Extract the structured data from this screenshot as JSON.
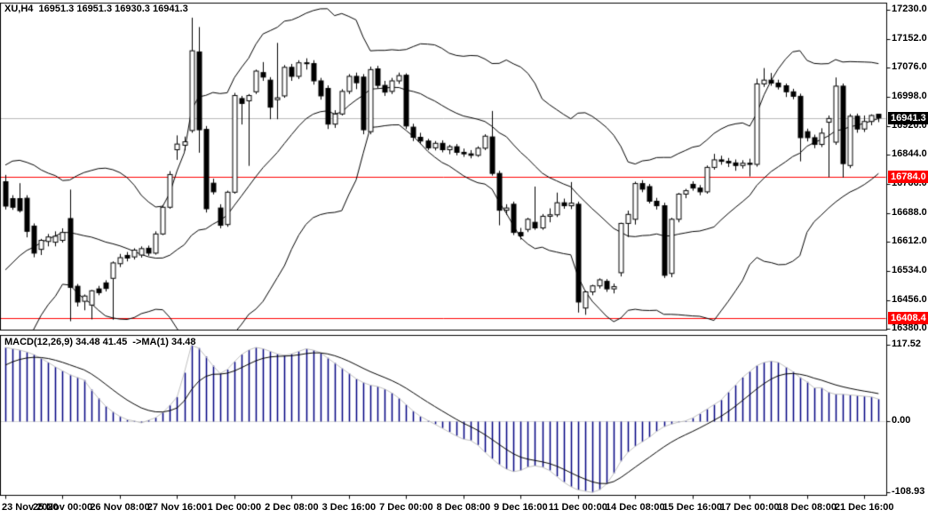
{
  "window_title": "XU,H4  16951.3 16951.3 16930.3 16941.3",
  "macd_label": "MACD(12,26,9) 34.48 41.45  ->MA(1) 34.48",
  "colors": {
    "background": "#ffffff",
    "border": "#000000",
    "bull_fill": "#ffffff",
    "bear_fill": "#000000",
    "candle_outline": "#000000",
    "band_line": "#000000",
    "hline": "#ff0000",
    "current_price_line": "#b8b8b8",
    "macd_hist": "#000080",
    "macd_ma_line": "#c0c0c0",
    "macd_signal_line": "#000000",
    "macd_zero_line": "#d9d9d9",
    "tag_current_bg": "#000000",
    "tag_hline_bg": "#ff0000",
    "tag_text": "#ffffff"
  },
  "chart_data": {
    "type": "candlestick",
    "symbol": "XU",
    "timeframe": "H4",
    "title": "XU,H4  16951.3 16951.3 16930.3 16941.3",
    "price_axis": {
      "labels": [
        17230.0,
        17152.0,
        17076.0,
        16998.0,
        16920.0,
        16844.0,
        16766.0,
        16688.0,
        16612.0,
        16534.0,
        16456.0,
        16380.0
      ],
      "visible_range": {
        "high": 17255,
        "low": 16381
      }
    },
    "time_axis": {
      "labels": [
        "23 Nov 2020",
        "25 Nov 00:00",
        "26 Nov 08:00",
        "27 Nov 16:00",
        "1 Dec 00:00",
        "2 Dec 08:00",
        "3 Dec 16:00",
        "7 Dec 00:00",
        "8 Dec 08:00",
        "9 Dec 16:00",
        "11 Dec 00:00",
        "14 Dec 08:00",
        "15 Dec 16:00",
        "17 Dec 00:00",
        "18 Dec 08:00",
        "21 Dec 16:00"
      ],
      "candles_per_label": 8
    },
    "current_price": {
      "price": 16941.3,
      "label": "16941.3"
    },
    "hlines": [
      {
        "price": 16784.0,
        "label": "16784.0"
      },
      {
        "price": 16408.4,
        "label": "16408.4"
      }
    ],
    "bollinger": {
      "period": 20,
      "deviation": 2
    },
    "prehistory_closes": [
      16310,
      16330,
      16320,
      16355,
      16400,
      16380,
      16430,
      16468,
      16450,
      16500,
      16530,
      16558,
      16552,
      16600,
      16630,
      16648,
      16680,
      16710,
      16742,
      16760
    ],
    "candles": [
      [
        16772,
        16790,
        16698,
        16707
      ],
      [
        16727,
        16736,
        16697,
        16704
      ],
      [
        16727,
        16768,
        16690,
        16695
      ],
      [
        16728,
        16736,
        16624,
        16640
      ],
      [
        16654,
        16661,
        16571,
        16582
      ],
      [
        16592,
        16620,
        16577,
        16616
      ],
      [
        16613,
        16633,
        16600,
        16625
      ],
      [
        16611,
        16640,
        16600,
        16627
      ],
      [
        16616,
        16648,
        16610,
        16637
      ],
      [
        16674,
        16751,
        16401,
        16491
      ],
      [
        16494,
        16500,
        16440,
        16452
      ],
      [
        16454,
        16472,
        16430,
        16468
      ],
      [
        16444,
        16484,
        16406,
        16482
      ],
      [
        16487,
        16495,
        16470,
        16477
      ],
      [
        16503,
        16510,
        16480,
        16488
      ],
      [
        16515,
        16560,
        16405,
        16556
      ],
      [
        16554,
        16580,
        16545,
        16570
      ],
      [
        16576,
        16585,
        16560,
        16569
      ],
      [
        16572,
        16595,
        16565,
        16590
      ],
      [
        16577,
        16600,
        16570,
        16594
      ],
      [
        16595,
        16602,
        16575,
        16582
      ],
      [
        16582,
        16640,
        16578,
        16633
      ],
      [
        16633,
        16710,
        16630,
        16704
      ],
      [
        16704,
        16800,
        16700,
        16791
      ],
      [
        16857,
        16895,
        16830,
        16872
      ],
      [
        16869,
        16892,
        16855,
        16878
      ],
      [
        16908,
        17208,
        16902,
        17120
      ],
      [
        17117,
        17183,
        16849,
        16910
      ],
      [
        16911,
        16920,
        16690,
        16700
      ],
      [
        16768,
        16780,
        16738,
        16745
      ],
      [
        16702,
        16712,
        16648,
        16656
      ],
      [
        16658,
        16748,
        16652,
        16744
      ],
      [
        16744,
        17008,
        16740,
        17001
      ],
      [
        16993,
        17000,
        16924,
        16980
      ],
      [
        16987,
        17005,
        16814,
        17001
      ],
      [
        17011,
        17070,
        17005,
        17066
      ],
      [
        17062,
        17090,
        17040,
        17050
      ],
      [
        17042,
        17050,
        16938,
        16970
      ],
      [
        16990,
        17141,
        16938,
        16995
      ],
      [
        17000,
        17082,
        16995,
        17076
      ],
      [
        17076,
        17085,
        17040,
        17052
      ],
      [
        17052,
        17095,
        17045,
        17088
      ],
      [
        17088,
        17100,
        17070,
        17086
      ],
      [
        17086,
        17095,
        17030,
        17040
      ],
      [
        17040,
        17048,
        16990,
        17000
      ],
      [
        17020,
        17028,
        16912,
        16925
      ],
      [
        16925,
        16962,
        16915,
        16952
      ],
      [
        16952,
        17018,
        16948,
        17012
      ],
      [
        17012,
        17058,
        17005,
        17052
      ],
      [
        17052,
        17062,
        17018,
        17035
      ],
      [
        17050,
        17058,
        16898,
        16910
      ],
      [
        16905,
        17078,
        16898,
        17070
      ],
      [
        17072,
        17080,
        17020,
        17028
      ],
      [
        17028,
        17040,
        17000,
        17010
      ],
      [
        17012,
        17048,
        17005,
        17040
      ],
      [
        17040,
        17062,
        17032,
        17054
      ],
      [
        17055,
        17060,
        16912,
        16920
      ],
      [
        16917,
        16926,
        16880,
        16890
      ],
      [
        16890,
        16902,
        16872,
        16880
      ],
      [
        16880,
        16886,
        16856,
        16862
      ],
      [
        16862,
        16880,
        16855,
        16874
      ],
      [
        16874,
        16882,
        16850,
        16857
      ],
      [
        16857,
        16870,
        16845,
        16865
      ],
      [
        16865,
        16872,
        16842,
        16850
      ],
      [
        16850,
        16860,
        16838,
        16846
      ],
      [
        16846,
        16856,
        16834,
        16842
      ],
      [
        16842,
        16866,
        16838,
        16861
      ],
      [
        16861,
        16898,
        16856,
        16893
      ],
      [
        16891,
        16960,
        16788,
        16794
      ],
      [
        16794,
        16801,
        16656,
        16696
      ],
      [
        16696,
        16712,
        16684,
        16702
      ],
      [
        16712,
        16719,
        16630,
        16637
      ],
      [
        16637,
        16649,
        16618,
        16628
      ],
      [
        16645,
        16676,
        16638,
        16672
      ],
      [
        16664,
        16759,
        16644,
        16649
      ],
      [
        16649,
        16686,
        16644,
        16680
      ],
      [
        16680,
        16701,
        16664,
        16684
      ],
      [
        16684,
        16743,
        16678,
        16716
      ],
      [
        16716,
        16727,
        16700,
        16708
      ],
      [
        16708,
        16771,
        16699,
        16715
      ],
      [
        16712,
        16719,
        16424,
        16452
      ],
      [
        16436,
        16482,
        16418,
        16479
      ],
      [
        16479,
        16498,
        16470,
        16495
      ],
      [
        16495,
        16515,
        16488,
        16511
      ],
      [
        16507,
        16513,
        16479,
        16487
      ],
      [
        16487,
        16501,
        16475,
        16493
      ],
      [
        16530,
        16663,
        16520,
        16661
      ],
      [
        16661,
        16695,
        16625,
        16685
      ],
      [
        16672,
        16772,
        16658,
        16767
      ],
      [
        16767,
        16776,
        16744,
        16752
      ],
      [
        16759,
        16766,
        16714,
        16720
      ],
      [
        16720,
        16729,
        16698,
        16708
      ],
      [
        16708,
        16716,
        16516,
        16523
      ],
      [
        16528,
        16676,
        16518,
        16672
      ],
      [
        16672,
        16742,
        16664,
        16739
      ],
      [
        16739,
        16753,
        16728,
        16748
      ],
      [
        16765,
        16773,
        16748,
        16755
      ],
      [
        16755,
        16763,
        16736,
        16745
      ],
      [
        16745,
        16815,
        16740,
        16810
      ],
      [
        16810,
        16846,
        16804,
        16830
      ],
      [
        16830,
        16841,
        16817,
        16826
      ],
      [
        16826,
        16835,
        16811,
        16822
      ],
      [
        16822,
        16831,
        16801,
        16815
      ],
      [
        16815,
        16829,
        16807,
        16821
      ],
      [
        16821,
        16833,
        16786,
        16818
      ],
      [
        16818,
        17046,
        16812,
        17032
      ],
      [
        17032,
        17074,
        17024,
        17042
      ],
      [
        17042,
        17061,
        17027,
        17034
      ],
      [
        17034,
        17043,
        17017,
        17024
      ],
      [
        17027,
        17033,
        16997,
        17011
      ],
      [
        17011,
        17019,
        16991,
        16999
      ],
      [
        16999,
        17006,
        16826,
        16889
      ],
      [
        16905,
        16913,
        16879,
        16889
      ],
      [
        16889,
        16897,
        16861,
        16871
      ],
      [
        16871,
        16914,
        16864,
        16901
      ],
      [
        16930,
        16948,
        16784,
        16940
      ],
      [
        16877,
        17049,
        16870,
        17026
      ],
      [
        17026,
        17033,
        16783,
        16820
      ],
      [
        16815,
        16952,
        16808,
        16946
      ],
      [
        16946,
        16953,
        16902,
        16912
      ],
      [
        16912,
        16948,
        16904,
        16932
      ],
      [
        16932,
        16951,
        16922,
        16948
      ],
      [
        16951.3,
        16951.3,
        16930.3,
        16941.3
      ]
    ],
    "macd": {
      "params": "12,26,9",
      "label": "MACD(12,26,9) 34.48 41.45  ->MA(1) 34.48",
      "main_value": 34.48,
      "signal_value": 41.45,
      "ma1_value": 34.48,
      "axis_labels": [
        {
          "label": "117.52",
          "value": 117.52
        },
        {
          "label": "0.00",
          "value": 0
        },
        {
          "label": "-108.93",
          "value": -108.93
        }
      ],
      "visible_range": {
        "high": 132.5,
        "low": -113.4
      },
      "signal_start": 80,
      "hist": [
        114,
        112,
        110,
        107,
        103,
        97,
        91,
        84,
        78,
        72,
        68,
        64,
        49,
        36,
        24,
        15,
        8,
        3,
        1,
        -2,
        2,
        6,
        14,
        25,
        38,
        75,
        117.5,
        113,
        100,
        86,
        74,
        80,
        92,
        103,
        110,
        114,
        112,
        108,
        104,
        102,
        104,
        108,
        112,
        110,
        106,
        98,
        90,
        82,
        74,
        66,
        60,
        56,
        54,
        50,
        44,
        36,
        26,
        16,
        8,
        2,
        -4,
        -10,
        -16,
        -22,
        -27,
        -29,
        -36,
        -47,
        -57,
        -66,
        -73,
        -77,
        -75,
        -70,
        -68,
        -70,
        -75,
        -84,
        -93,
        -100,
        -105,
        -107,
        -108.9,
        -105,
        -96,
        -80,
        -61,
        -47,
        -38,
        -31,
        -24,
        -15,
        -8,
        -4,
        -1,
        1,
        5.5,
        12,
        19,
        26,
        33,
        45,
        56,
        68,
        77,
        86,
        91,
        93,
        91,
        84,
        77,
        68,
        61,
        52,
        52,
        45,
        42,
        42,
        41,
        40,
        39,
        38,
        34.48
      ]
    }
  }
}
